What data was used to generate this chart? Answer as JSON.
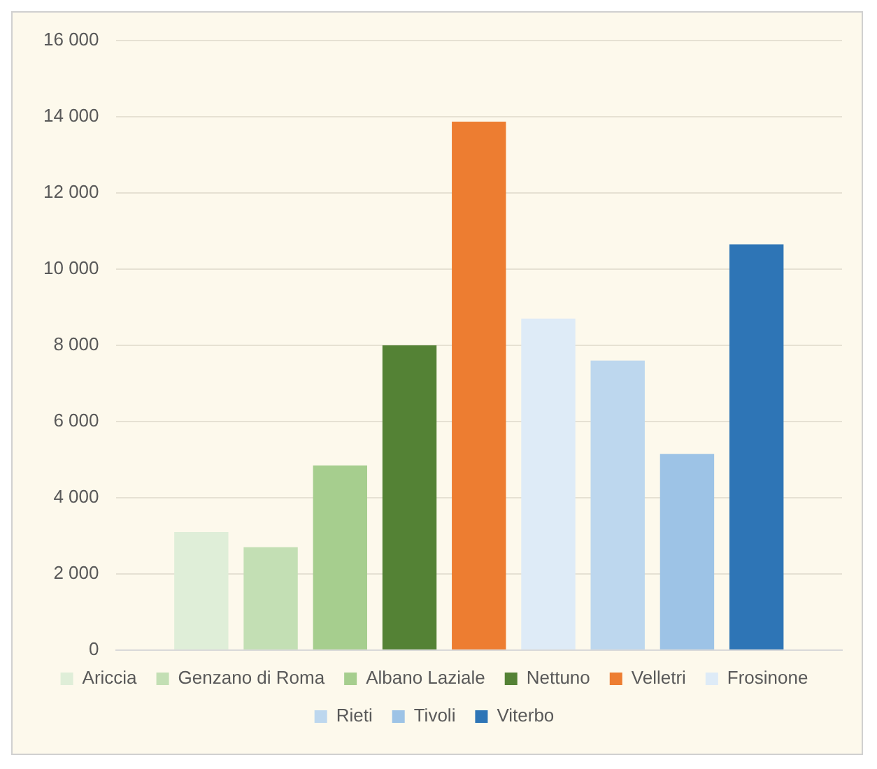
{
  "chart_data": {
    "type": "bar",
    "categories": [
      null
    ],
    "series": [
      {
        "name": "Ariccia",
        "color": "#dfeed8",
        "values": [
          3100
        ]
      },
      {
        "name": "Genzano di Roma",
        "color": "#c3dfb4",
        "values": [
          2700
        ]
      },
      {
        "name": "Albano Laziale",
        "color": "#a6ce8e",
        "values": [
          4850
        ]
      },
      {
        "name": "Nettuno",
        "color": "#548235",
        "values": [
          8000
        ]
      },
      {
        "name": "Velletri",
        "color": "#ed7d31",
        "values": [
          13870
        ]
      },
      {
        "name": "Frosinone",
        "color": "#deebf7",
        "values": [
          8700
        ]
      },
      {
        "name": "Rieti",
        "color": "#bdd7ee",
        "values": [
          7600
        ]
      },
      {
        "name": "Tivoli",
        "color": "#9dc3e6",
        "values": [
          5150
        ]
      },
      {
        "name": "Viterbo",
        "color": "#2e75b6",
        "values": [
          10650
        ]
      }
    ],
    "ylim": [
      0,
      16000
    ],
    "yticks": [
      {
        "value": 0,
        "label": "0"
      },
      {
        "value": 2000,
        "label": "2 000"
      },
      {
        "value": 4000,
        "label": "4 000"
      },
      {
        "value": 6000,
        "label": "6 000"
      },
      {
        "value": 8000,
        "label": "8 000"
      },
      {
        "value": 10000,
        "label": "10 000"
      },
      {
        "value": 12000,
        "label": "12 000"
      },
      {
        "value": 14000,
        "label": "14 000"
      },
      {
        "value": 16000,
        "label": "16 000"
      }
    ],
    "grid": "y",
    "legend": "bottom"
  }
}
